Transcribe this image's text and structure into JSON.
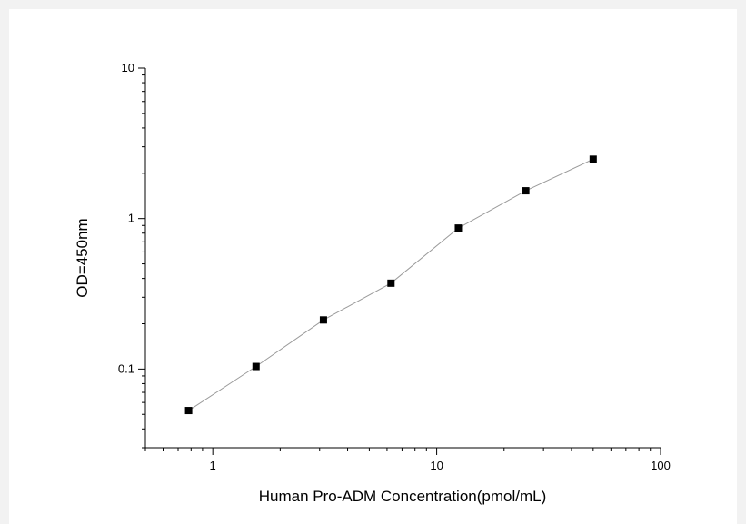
{
  "chart_data": {
    "type": "line",
    "title": "",
    "xlabel": "Human Pro-ADM Concentration(pmol/mL)",
    "ylabel": "OD=450nm",
    "xscale": "log",
    "yscale": "log",
    "xlim": [
      0.5,
      100
    ],
    "ylim": [
      0.03,
      10
    ],
    "x_ticks": [
      {
        "value": 1,
        "label": "1"
      },
      {
        "value": 10,
        "label": "10"
      },
      {
        "value": 100,
        "label": "100"
      }
    ],
    "y_ticks": [
      {
        "value": 0.1,
        "label": "0.1"
      },
      {
        "value": 1,
        "label": "1"
      },
      {
        "value": 10,
        "label": "10"
      }
    ],
    "grid": false,
    "legend": "none",
    "marker": "square",
    "line_color": "#9a9a9a",
    "marker_color": "#000000",
    "series": [
      {
        "x": [
          0.78,
          1.56,
          3.12,
          6.25,
          12.5,
          25,
          50
        ],
        "y": [
          0.053,
          0.104,
          0.212,
          0.372,
          0.865,
          1.53,
          2.48
        ]
      }
    ]
  }
}
